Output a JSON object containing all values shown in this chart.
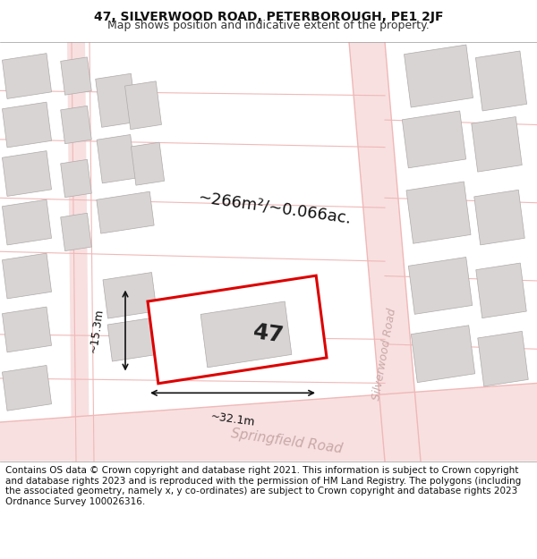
{
  "title_line1": "47, SILVERWOOD ROAD, PETERBOROUGH, PE1 2JF",
  "title_line2": "Map shows position and indicative extent of the property.",
  "footer_text": "Contains OS data © Crown copyright and database right 2021. This information is subject to Crown copyright and database rights 2023 and is reproduced with the permission of HM Land Registry. The polygons (including the associated geometry, namely x, y co-ordinates) are subject to Crown copyright and database rights 2023 Ordnance Survey 100026316.",
  "area_label": "~266m²/~0.066ac.",
  "width_label": "~32.1m",
  "height_label": "~15.3m",
  "number_label": "47",
  "bg_color": "#f5f5f5",
  "map_bg": "#f0eeee",
  "road_color": "#f5c8c8",
  "building_color": "#d8d4d4",
  "building_outline": "#b0aaaa",
  "highlighted_fill": "#ffffff",
  "highlighted_outline": "#dd0000",
  "road_label_color": "#b0a0a0",
  "dim_line_color": "#111111",
  "title_fontsize": 10,
  "subtitle_fontsize": 9,
  "footer_fontsize": 7.5
}
